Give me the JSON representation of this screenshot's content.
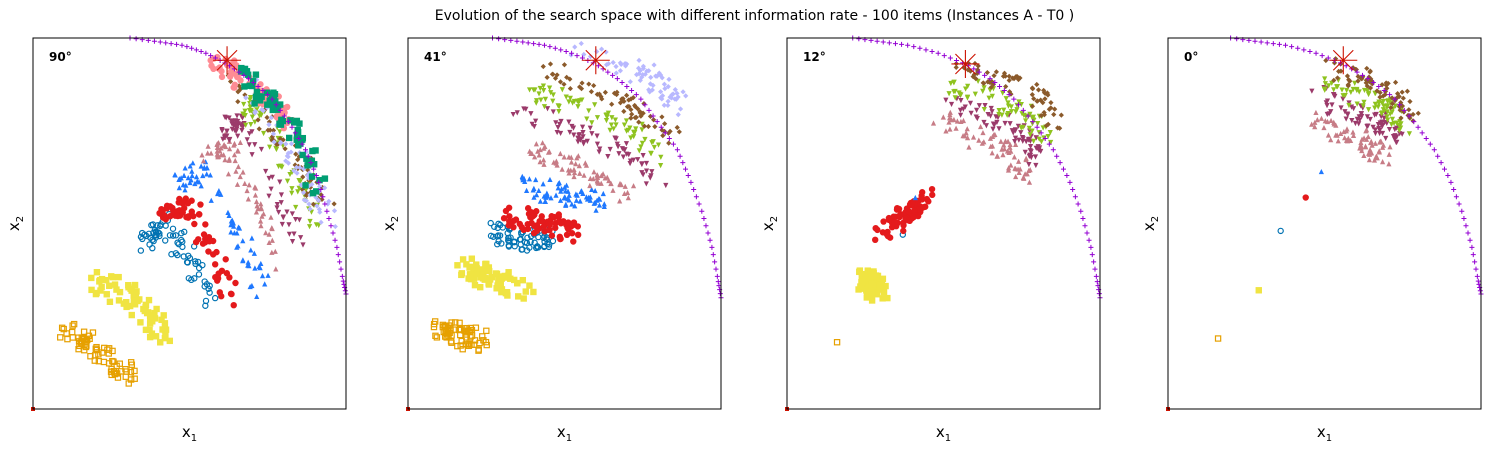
{
  "title": "Evolution of the search space with different information rate - 100 items (Instances A - T0 )",
  "xlabel_main": "x",
  "xlabel_sub": "1",
  "ylabel_main": "x",
  "ylabel_sub": "2",
  "colors": {
    "front": "#9400d3",
    "target": "#cc1100",
    "cloud": [
      "#e6a000",
      "#f0e442",
      "#0072b2",
      "#e41a1c",
      "#1f78ff",
      "#c77c86",
      "#9b3a6a",
      "#8fc31f",
      "#8b5a2b",
      "#b8b8ff",
      "#ff8c94",
      "#009e73",
      "#f5c518",
      "#66c2e0",
      "#a6a6a6"
    ]
  },
  "chart_data": [
    {
      "type": "scatter",
      "panel_label": "90°",
      "xlim": [
        0,
        1
      ],
      "ylim": [
        0,
        1
      ],
      "target": [
        0.62,
        0.94
      ],
      "front": {
        "x": [
          0.31,
          0.4,
          0.48,
          0.55,
          0.62,
          0.69,
          0.76,
          0.82,
          0.87,
          0.91,
          0.94,
          0.97,
          0.99,
          1.0
        ],
        "y": [
          1.0,
          0.99,
          0.98,
          0.96,
          0.93,
          0.89,
          0.84,
          0.77,
          0.7,
          0.62,
          0.53,
          0.44,
          0.35,
          0.31
        ]
      },
      "clouds": [
        {
          "x": [
            0.1,
            0.2,
            0.32
          ],
          "y": [
            0.22,
            0.15,
            0.08
          ]
        },
        {
          "x": [
            0.2,
            0.32,
            0.42
          ],
          "y": [
            0.35,
            0.3,
            0.2
          ]
        },
        {
          "x": [
            0.35,
            0.42,
            0.58
          ],
          "y": [
            0.45,
            0.5,
            0.3
          ]
        },
        {
          "x": [
            0.42,
            0.5,
            0.64
          ],
          "y": [
            0.52,
            0.55,
            0.3
          ]
        },
        {
          "x": [
            0.48,
            0.55,
            0.74
          ],
          "y": [
            0.62,
            0.65,
            0.32
          ]
        },
        {
          "x": [
            0.56,
            0.62,
            0.8
          ],
          "y": [
            0.68,
            0.72,
            0.38
          ]
        },
        {
          "x": [
            0.62,
            0.67,
            0.85
          ],
          "y": [
            0.74,
            0.78,
            0.45
          ]
        },
        {
          "x": [
            0.68,
            0.72,
            0.9
          ],
          "y": [
            0.78,
            0.82,
            0.5
          ]
        },
        {
          "x": [
            0.62,
            0.8,
            0.94
          ],
          "y": [
            0.9,
            0.72,
            0.55
          ]
        },
        {
          "x": [
            0.68,
            0.84,
            0.95
          ],
          "y": [
            0.88,
            0.68,
            0.5
          ]
        },
        {
          "x": [
            0.58,
            0.72,
            0.82
          ],
          "y": [
            0.94,
            0.86,
            0.78
          ]
        },
        {
          "x": [
            0.66,
            0.78,
            0.92
          ],
          "y": [
            0.9,
            0.82,
            0.6
          ]
        }
      ]
    },
    {
      "type": "scatter",
      "panel_label": "41°",
      "xlim": [
        0,
        1
      ],
      "ylim": [
        0,
        1
      ],
      "target": [
        0.6,
        0.94
      ],
      "front": {
        "x": [
          0.27,
          0.36,
          0.44,
          0.52,
          0.6,
          0.67,
          0.74,
          0.8,
          0.86,
          0.9,
          0.94,
          0.97,
          0.99,
          1.0
        ],
        "y": [
          1.0,
          0.99,
          0.98,
          0.96,
          0.93,
          0.89,
          0.84,
          0.77,
          0.7,
          0.62,
          0.53,
          0.44,
          0.35,
          0.3
        ]
      },
      "clouds": [
        {
          "x": [
            0.1,
            0.17,
            0.23
          ],
          "y": [
            0.22,
            0.2,
            0.18
          ]
        },
        {
          "x": [
            0.18,
            0.26,
            0.38
          ],
          "y": [
            0.38,
            0.35,
            0.32
          ]
        },
        {
          "x": [
            0.28,
            0.36,
            0.48
          ],
          "y": [
            0.48,
            0.45,
            0.47
          ]
        },
        {
          "x": [
            0.32,
            0.44,
            0.54
          ],
          "y": [
            0.52,
            0.5,
            0.48
          ]
        },
        {
          "x": [
            0.36,
            0.5,
            0.62
          ],
          "y": [
            0.6,
            0.58,
            0.55
          ]
        },
        {
          "x": [
            0.38,
            0.56,
            0.72
          ],
          "y": [
            0.7,
            0.65,
            0.56
          ]
        },
        {
          "x": [
            0.36,
            0.62,
            0.8
          ],
          "y": [
            0.8,
            0.72,
            0.62
          ]
        },
        {
          "x": [
            0.38,
            0.66,
            0.82
          ],
          "y": [
            0.86,
            0.78,
            0.68
          ]
        },
        {
          "x": [
            0.42,
            0.7,
            0.84
          ],
          "y": [
            0.92,
            0.82,
            0.74
          ]
        },
        {
          "x": [
            0.55,
            0.78,
            0.86
          ],
          "y": [
            0.96,
            0.9,
            0.82
          ]
        }
      ]
    },
    {
      "type": "scatter",
      "panel_label": "12°",
      "xlim": [
        0,
        1
      ],
      "ylim": [
        0,
        1
      ],
      "target": [
        0.57,
        0.93
      ],
      "front": {
        "x": [
          0.21,
          0.3,
          0.39,
          0.48,
          0.57,
          0.65,
          0.72,
          0.79,
          0.85,
          0.9,
          0.94,
          0.97,
          0.99,
          1.0
        ],
        "y": [
          1.0,
          0.99,
          0.98,
          0.96,
          0.93,
          0.89,
          0.84,
          0.77,
          0.7,
          0.62,
          0.53,
          0.44,
          0.35,
          0.3
        ]
      },
      "clouds": [
        {
          "x": [
            0.16
          ],
          "y": [
            0.18
          ]
        },
        {
          "x": [
            0.25,
            0.3
          ],
          "y": [
            0.35,
            0.32
          ]
        },
        {
          "x": [
            0.37
          ],
          "y": [
            0.47
          ]
        },
        {
          "x": [
            0.31,
            0.45
          ],
          "y": [
            0.48,
            0.57
          ]
        },
        {
          "x": [
            0.41
          ],
          "y": [
            0.57
          ]
        },
        {
          "x": [
            0.48,
            0.7,
            0.76
          ],
          "y": [
            0.78,
            0.7,
            0.62
          ]
        },
        {
          "x": [
            0.5,
            0.72,
            0.8
          ],
          "y": [
            0.84,
            0.76,
            0.68
          ]
        },
        {
          "x": [
            0.52,
            0.75,
            0.84
          ],
          "y": [
            0.88,
            0.8,
            0.72
          ]
        },
        {
          "x": [
            0.55,
            0.78,
            0.86
          ],
          "y": [
            0.92,
            0.86,
            0.78
          ]
        }
      ]
    },
    {
      "type": "scatter",
      "panel_label": "0°",
      "xlim": [
        0,
        1
      ],
      "ylim": [
        0,
        1
      ],
      "target": [
        0.56,
        0.94
      ],
      "front": {
        "x": [
          0.2,
          0.29,
          0.38,
          0.47,
          0.56,
          0.64,
          0.72,
          0.79,
          0.85,
          0.9,
          0.94,
          0.97,
          0.99,
          1.0
        ],
        "y": [
          1.0,
          0.99,
          0.98,
          0.96,
          0.93,
          0.89,
          0.84,
          0.77,
          0.7,
          0.62,
          0.53,
          0.44,
          0.35,
          0.31
        ]
      },
      "clouds": [
        {
          "x": [
            0.16
          ],
          "y": [
            0.19
          ]
        },
        {
          "x": [
            0.29
          ],
          "y": [
            0.32
          ]
        },
        {
          "x": [
            0.36
          ],
          "y": [
            0.48
          ]
        },
        {
          "x": [
            0.44
          ],
          "y": [
            0.57
          ]
        },
        {
          "x": [
            0.49
          ],
          "y": [
            0.64
          ]
        },
        {
          "x": [
            0.46,
            0.62,
            0.7
          ],
          "y": [
            0.78,
            0.72,
            0.68
          ]
        },
        {
          "x": [
            0.48,
            0.66,
            0.74
          ],
          "y": [
            0.84,
            0.78,
            0.72
          ]
        },
        {
          "x": [
            0.5,
            0.68,
            0.76
          ],
          "y": [
            0.88,
            0.82,
            0.76
          ]
        },
        {
          "x": [
            0.52,
            0.7,
            0.78
          ],
          "y": [
            0.92,
            0.86,
            0.8
          ]
        }
      ]
    }
  ]
}
